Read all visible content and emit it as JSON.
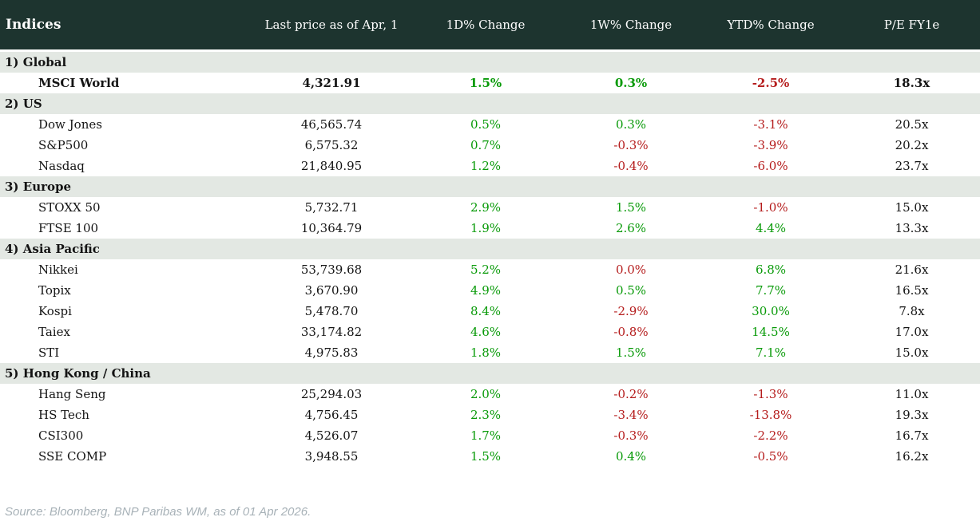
{
  "chart_data": {
    "type": "table",
    "title": "Indices",
    "columns": [
      "Last price as of Apr, 1",
      "1D% Change",
      "1W% Change",
      "YTD% Change",
      "P/E FY1e"
    ],
    "colors": {
      "header_bg": "#1d342f",
      "header_text": "#ffffff",
      "section_bg": "#e3e8e3",
      "positive": "#089a08",
      "negative": "#b51c1c"
    },
    "sections": [
      {
        "label": "1) Global",
        "rows": [
          {
            "name": "MSCI World",
            "bold": true,
            "price": "4,321.91",
            "d1": {
              "v": "1.5%",
              "c": "pos"
            },
            "w1": {
              "v": "0.3%",
              "c": "pos"
            },
            "ytd": {
              "v": "-2.5%",
              "c": "neg"
            },
            "pe": "18.3x"
          }
        ]
      },
      {
        "label": "2) US",
        "rows": [
          {
            "name": "Dow Jones",
            "price": "46,565.74",
            "d1": {
              "v": "0.5%",
              "c": "pos"
            },
            "w1": {
              "v": "0.3%",
              "c": "pos"
            },
            "ytd": {
              "v": "-3.1%",
              "c": "neg"
            },
            "pe": "20.5x"
          },
          {
            "name": "S&P500",
            "price": "6,575.32",
            "d1": {
              "v": "0.7%",
              "c": "pos"
            },
            "w1": {
              "v": "-0.3%",
              "c": "neg"
            },
            "ytd": {
              "v": "-3.9%",
              "c": "neg"
            },
            "pe": "20.2x"
          },
          {
            "name": "Nasdaq",
            "price": "21,840.95",
            "d1": {
              "v": "1.2%",
              "c": "pos"
            },
            "w1": {
              "v": "-0.4%",
              "c": "neg"
            },
            "ytd": {
              "v": "-6.0%",
              "c": "neg"
            },
            "pe": "23.7x"
          }
        ]
      },
      {
        "label": "3) Europe",
        "rows": [
          {
            "name": "STOXX 50",
            "price": "5,732.71",
            "d1": {
              "v": "2.9%",
              "c": "pos"
            },
            "w1": {
              "v": "1.5%",
              "c": "pos"
            },
            "ytd": {
              "v": "-1.0%",
              "c": "neg"
            },
            "pe": "15.0x"
          },
          {
            "name": "FTSE 100",
            "price": "10,364.79",
            "d1": {
              "v": "1.9%",
              "c": "pos"
            },
            "w1": {
              "v": "2.6%",
              "c": "pos"
            },
            "ytd": {
              "v": "4.4%",
              "c": "pos"
            },
            "pe": "13.3x"
          }
        ]
      },
      {
        "label": "4) Asia Pacific",
        "rows": [
          {
            "name": "Nikkei",
            "price": "53,739.68",
            "d1": {
              "v": "5.2%",
              "c": "pos"
            },
            "w1": {
              "v": "0.0%",
              "c": "neg"
            },
            "ytd": {
              "v": "6.8%",
              "c": "pos"
            },
            "pe": "21.6x"
          },
          {
            "name": "Topix",
            "price": "3,670.90",
            "d1": {
              "v": "4.9%",
              "c": "pos"
            },
            "w1": {
              "v": "0.5%",
              "c": "pos"
            },
            "ytd": {
              "v": "7.7%",
              "c": "pos"
            },
            "pe": "16.5x"
          },
          {
            "name": "Kospi",
            "price": "5,478.70",
            "d1": {
              "v": "8.4%",
              "c": "pos"
            },
            "w1": {
              "v": "-2.9%",
              "c": "neg"
            },
            "ytd": {
              "v": "30.0%",
              "c": "pos"
            },
            "pe": "7.8x"
          },
          {
            "name": "Taiex",
            "price": "33,174.82",
            "d1": {
              "v": "4.6%",
              "c": "pos"
            },
            "w1": {
              "v": "-0.8%",
              "c": "neg"
            },
            "ytd": {
              "v": "14.5%",
              "c": "pos"
            },
            "pe": "17.0x"
          },
          {
            "name": "STI",
            "price": "4,975.83",
            "d1": {
              "v": "1.8%",
              "c": "pos"
            },
            "w1": {
              "v": "1.5%",
              "c": "pos"
            },
            "ytd": {
              "v": "7.1%",
              "c": "pos"
            },
            "pe": "15.0x"
          }
        ]
      },
      {
        "label": "5) Hong Kong / China",
        "rows": [
          {
            "name": "Hang Seng",
            "price": "25,294.03",
            "d1": {
              "v": "2.0%",
              "c": "pos"
            },
            "w1": {
              "v": "-0.2%",
              "c": "neg"
            },
            "ytd": {
              "v": "-1.3%",
              "c": "neg"
            },
            "pe": "11.0x"
          },
          {
            "name": "HS Tech",
            "price": "4,756.45",
            "d1": {
              "v": "2.3%",
              "c": "pos"
            },
            "w1": {
              "v": "-3.4%",
              "c": "neg"
            },
            "ytd": {
              "v": "-13.8%",
              "c": "neg"
            },
            "pe": "19.3x"
          },
          {
            "name": "CSI300",
            "price": "4,526.07",
            "d1": {
              "v": "1.7%",
              "c": "pos"
            },
            "w1": {
              "v": "-0.3%",
              "c": "neg"
            },
            "ytd": {
              "v": "-2.2%",
              "c": "neg"
            },
            "pe": "16.7x"
          },
          {
            "name": "SSE COMP",
            "price": "3,948.55",
            "d1": {
              "v": "1.5%",
              "c": "pos"
            },
            "w1": {
              "v": "0.4%",
              "c": "pos"
            },
            "ytd": {
              "v": "-0.5%",
              "c": "neg"
            },
            "pe": "16.2x"
          }
        ]
      }
    ]
  },
  "footer": {
    "source": "Source: Bloomberg, BNP Paribas WM, as of 01 Apr 2026."
  }
}
